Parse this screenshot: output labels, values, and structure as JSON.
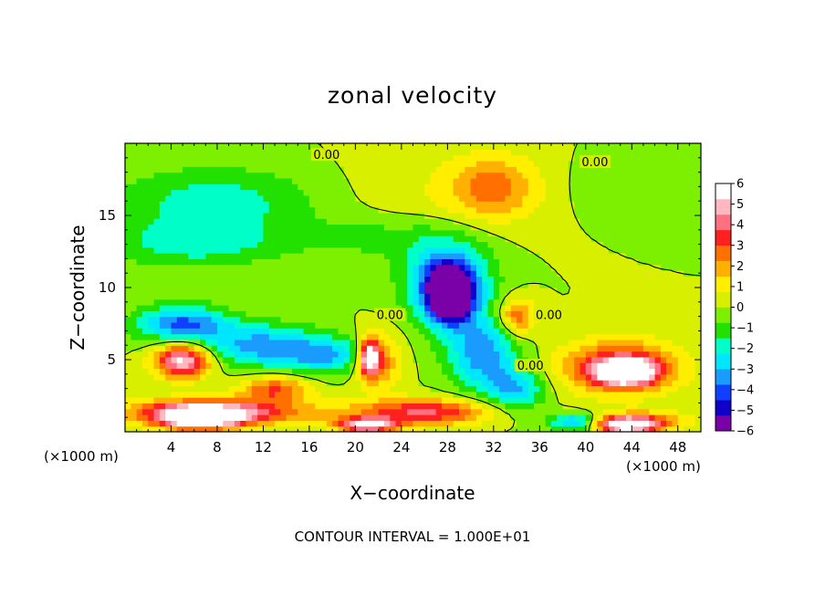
{
  "chart_data": {
    "type": "heatmap",
    "title": "zonal velocity",
    "xlabel": "X−coordinate",
    "ylabel": "Z−coordinate",
    "x_unit_left": "(×1000 m)",
    "x_unit_right": "(×1000 m)",
    "footer": "CONTOUR INTERVAL = 1.000E+01",
    "xlim": [
      0,
      50
    ],
    "ylim": [
      0,
      20
    ],
    "x_ticks": [
      4,
      8,
      12,
      16,
      20,
      24,
      28,
      32,
      36,
      40,
      44,
      48
    ],
    "y_ticks": [
      5,
      10,
      15
    ],
    "colorbar": {
      "min": -6,
      "max": 6,
      "labels": [
        "6",
        "5",
        "4",
        "3",
        "2",
        "1",
        "0",
        "−1",
        "−2",
        "−3",
        "−4",
        "−5",
        "−6"
      ],
      "colors": [
        "#7a00a8",
        "#1000c8",
        "#1040ff",
        "#1a9cff",
        "#00e6ff",
        "#00ffc8",
        "#22e000",
        "#7cf000",
        "#d8f000",
        "#ffee00",
        "#ffb000",
        "#ff7000",
        "#ff2020",
        "#ff7080",
        "#ffb8c0",
        "#ffffff"
      ]
    },
    "contour_labels": [
      {
        "text": "0.00",
        "x": 17.5,
        "y": 19.1
      },
      {
        "text": "0.00",
        "x": 40.8,
        "y": 18.6
      },
      {
        "text": "0.00",
        "x": 23.0,
        "y": 8.0
      },
      {
        "text": "0.00",
        "x": 36.8,
        "y": 8.0
      },
      {
        "text": "0.00",
        "x": 35.2,
        "y": 4.5
      }
    ],
    "features": [
      {
        "v": 0.6,
        "x": 26,
        "y": 16.5,
        "rx": 9,
        "ry": 3
      },
      {
        "v": 2.8,
        "x": 32,
        "y": 17.0,
        "rx": 4,
        "ry": 2.2
      },
      {
        "v": -2.2,
        "x": 8,
        "y": 16.0,
        "rx": 9,
        "ry": 2.4
      },
      {
        "v": -2.0,
        "x": 6,
        "y": 13.0,
        "rx": 8,
        "ry": 1.6
      },
      {
        "v": -1.2,
        "x": 22,
        "y": 13.5,
        "rx": 6,
        "ry": 1.5
      },
      {
        "v": -0.6,
        "x": 44,
        "y": 17.0,
        "rx": 6,
        "ry": 2.0
      },
      {
        "v": -4.5,
        "x": 5,
        "y": 7.5,
        "rx": 4,
        "ry": 1.3
      },
      {
        "v": -3.8,
        "x": 12,
        "y": 6.0,
        "rx": 5,
        "ry": 1.5
      },
      {
        "v": -3.2,
        "x": 18,
        "y": 5.3,
        "rx": 4,
        "ry": 1.2
      },
      {
        "v": -4.8,
        "x": 28,
        "y": 10.5,
        "rx": 3.6,
        "ry": 2.8
      },
      {
        "v": -7.5,
        "x": 28.2,
        "y": 9.5,
        "rx": 1.9,
        "ry": 1.8
      },
      {
        "v": -4.0,
        "x": 31,
        "y": 5.5,
        "rx": 3,
        "ry": 2.5
      },
      {
        "v": -3.2,
        "x": 34,
        "y": 3.0,
        "rx": 2.5,
        "ry": 1.6
      },
      {
        "v": 3.5,
        "x": 34,
        "y": 8.0,
        "rx": 1.6,
        "ry": 1.3
      },
      {
        "v": 4.8,
        "x": 43,
        "y": 4.5,
        "rx": 5,
        "ry": 1.8
      },
      {
        "v": 7.5,
        "x": 43.5,
        "y": 4.2,
        "rx": 2.4,
        "ry": 0.8
      },
      {
        "v": 3.5,
        "x": 22,
        "y": 5.0,
        "rx": 2,
        "ry": 1.8
      },
      {
        "v": 6.5,
        "x": 21.2,
        "y": 5.2,
        "rx": 0.9,
        "ry": 1.2
      },
      {
        "v": 3.5,
        "x": 13,
        "y": 3.0,
        "rx": 3,
        "ry": 0.9
      },
      {
        "v": 6.5,
        "x": 5,
        "y": 5.0,
        "rx": 2.4,
        "ry": 1.2
      },
      {
        "v": 5.0,
        "x": 8,
        "y": 1.4,
        "rx": 8,
        "ry": 0.9
      },
      {
        "v": 4.5,
        "x": 26,
        "y": 1.4,
        "rx": 6,
        "ry": 0.9
      },
      {
        "v": 3.0,
        "x": 45,
        "y": 0.8,
        "rx": 4,
        "ry": 0.7
      },
      {
        "v": 7.0,
        "x": 6.5,
        "y": 1.0,
        "rx": 3.5,
        "ry": 0.8
      },
      {
        "v": 6.5,
        "x": 21,
        "y": 0.5,
        "rx": 2.5,
        "ry": 0.5
      },
      {
        "v": 7.0,
        "x": 43.5,
        "y": 0.5,
        "rx": 2.5,
        "ry": 0.5
      },
      {
        "v": -4.0,
        "x": 39,
        "y": 0.7,
        "rx": 2,
        "ry": 0.6
      }
    ]
  }
}
